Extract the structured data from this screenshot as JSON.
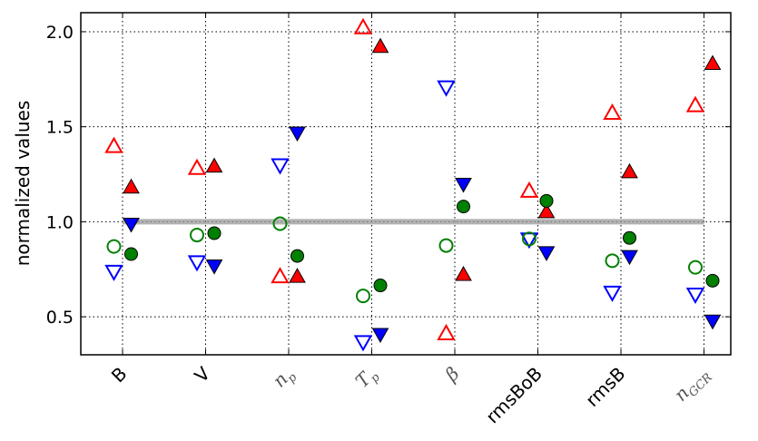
{
  "chart_data": {
    "type": "scatter",
    "y_label": "normalized values",
    "categories": [
      "B",
      "V",
      {
        "text": "n",
        "sub": "p"
      },
      {
        "text": "T",
        "sub": "p"
      },
      {
        "text": "β"
      },
      "rmsBoB",
      "rmsB",
      {
        "text": "n",
        "sub": "GCR"
      }
    ],
    "ylim": [
      0.3,
      2.1
    ],
    "yticks": [
      {
        "value": 0.5,
        "label": "0.5"
      },
      {
        "value": 1.0,
        "label": "1.0"
      },
      {
        "value": 1.5,
        "label": "1.5"
      },
      {
        "value": 2.0,
        "label": "2.0"
      }
    ],
    "grid": true,
    "reference_line": 1.0,
    "series": [
      {
        "color": "#ff0000",
        "marker": "triangle-up",
        "filled": false,
        "side": "left",
        "values": [
          1.395,
          1.28,
          0.71,
          2.02,
          0.41,
          1.16,
          1.57,
          1.61
        ]
      },
      {
        "color": "#ff0000",
        "marker": "triangle-up",
        "filled": true,
        "side": "right",
        "values": [
          1.18,
          1.29,
          0.71,
          1.92,
          0.72,
          1.05,
          1.26,
          1.83
        ]
      },
      {
        "color": "#0000ff",
        "marker": "triangle-down",
        "filled": false,
        "side": "left",
        "values": [
          0.74,
          0.79,
          1.3,
          0.37,
          1.71,
          0.91,
          0.63,
          0.62
        ]
      },
      {
        "color": "#0000ff",
        "marker": "triangle-down",
        "filled": true,
        "side": "right",
        "values": [
          0.99,
          0.77,
          1.47,
          0.41,
          1.2,
          0.84,
          0.82,
          0.48
        ]
      },
      {
        "color": "#008000",
        "marker": "circle",
        "filled": false,
        "side": "left",
        "values": [
          0.87,
          0.93,
          0.99,
          0.61,
          0.875,
          0.91,
          0.795,
          0.76
        ]
      },
      {
        "color": "#008000",
        "marker": "circle",
        "filled": true,
        "side": "right",
        "values": [
          0.83,
          0.94,
          0.82,
          0.665,
          1.08,
          1.11,
          0.915,
          0.69
        ]
      }
    ]
  }
}
